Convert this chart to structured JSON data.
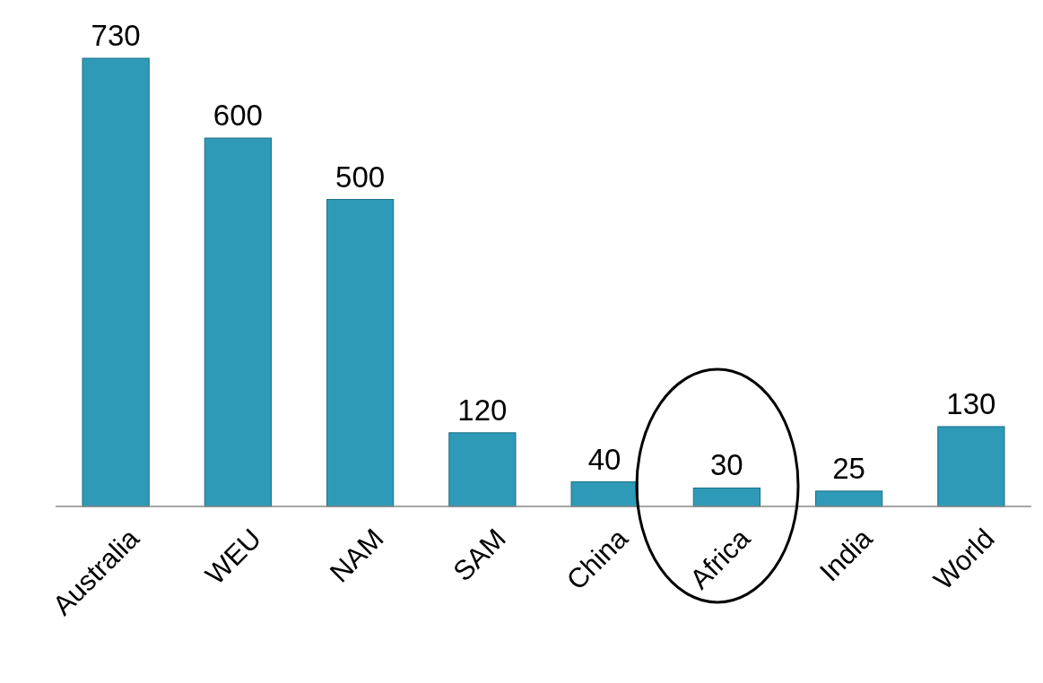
{
  "chart_data": {
    "type": "bar",
    "categories": [
      "Australia",
      "WEU",
      "NAM",
      "SAM",
      "China",
      "Africa",
      "India",
      "World"
    ],
    "values": [
      730,
      600,
      500,
      120,
      40,
      30,
      25,
      130
    ],
    "color": "#2e9ab7",
    "data_labels": true
  }
}
